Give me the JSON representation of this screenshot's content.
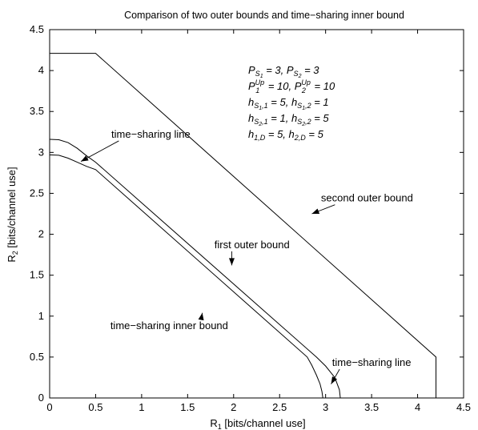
{
  "chart_data": {
    "type": "line",
    "title": "Comparison of two outer bounds and time−sharing inner bound",
    "xlabel_main": "R",
    "xlabel_sub": "1",
    "xlabel_rest": " [bits/channel use]",
    "ylabel_main": "R",
    "ylabel_sub": "2",
    "ylabel_rest": " [bits/channel use]",
    "xlim": [
      0,
      4.5
    ],
    "ylim": [
      0,
      4.5
    ],
    "xticks": [
      0,
      0.5,
      1,
      1.5,
      2,
      2.5,
      3,
      3.5,
      4,
      4.5
    ],
    "yticks": [
      0,
      0.5,
      1,
      1.5,
      2,
      2.5,
      3,
      3.5,
      4,
      4.5
    ],
    "xtick_labels": [
      "0",
      "0.5",
      "1",
      "1.5",
      "2",
      "2.5",
      "3",
      "3.5",
      "4",
      "4.5"
    ],
    "ytick_labels": [
      "0",
      "0.5",
      "1",
      "1.5",
      "2",
      "2.5",
      "3",
      "3.5",
      "4",
      "4.5"
    ],
    "grid": false,
    "series": [
      {
        "id": "second-outer",
        "x": [
          0,
          0.5,
          4.2,
          4.2
        ],
        "y": [
          4.21,
          4.21,
          0.5,
          0
        ]
      },
      {
        "id": "first-outer",
        "x": [
          0,
          0.1,
          0.2,
          0.3,
          0.4,
          0.5,
          2.9,
          3.0,
          3.1,
          3.15,
          3.16
        ],
        "y": [
          3.16,
          3.155,
          3.12,
          3.05,
          2.96,
          2.88,
          0.5,
          0.39,
          0.25,
          0.1,
          0
        ]
      },
      {
        "id": "inner-bound",
        "x": [
          0,
          0.1,
          0.2,
          0.3,
          0.4,
          0.5,
          2.8,
          2.85,
          2.9,
          2.94,
          2.96,
          2.97
        ],
        "y": [
          2.97,
          2.965,
          2.93,
          2.88,
          2.83,
          2.79,
          0.5,
          0.4,
          0.28,
          0.17,
          0.08,
          0
        ]
      }
    ],
    "annotations": [
      {
        "id": "second-outer-bound",
        "text": "second outer bound",
        "x": 3.45,
        "y": 2.4,
        "arrow_to": [
          2.85,
          2.25
        ]
      },
      {
        "id": "first-outer-bound",
        "text": "first outer bound",
        "x": 2.2,
        "y": 1.83,
        "arrow_to": [
          1.98,
          1.62
        ]
      },
      {
        "id": "time-sharing-inner-bound",
        "text": "time−sharing inner bound",
        "x": 1.3,
        "y": 0.84,
        "arrow_to": [
          1.66,
          1.04
        ]
      },
      {
        "id": "time-sharing-line-top",
        "text": "time−sharing line",
        "x": 1.1,
        "y": 3.18,
        "arrow_to": [
          0.34,
          2.89
        ]
      },
      {
        "id": "time-sharing-line-bottom",
        "text": "time−sharing line",
        "x": 3.5,
        "y": 0.39,
        "arrow_to": [
          3.06,
          0.17
        ]
      }
    ],
    "params_text": [
      "P_S1 = 3, P_S2 = 3",
      "P_1^Up = 10, P_2^Up = 10",
      "h_S1,1 = 5, h_S1,2 = 1",
      "h_S2,1 = 1, h_S2,2 = 5",
      "h_1,D = 5, h_2,D = 5"
    ]
  }
}
